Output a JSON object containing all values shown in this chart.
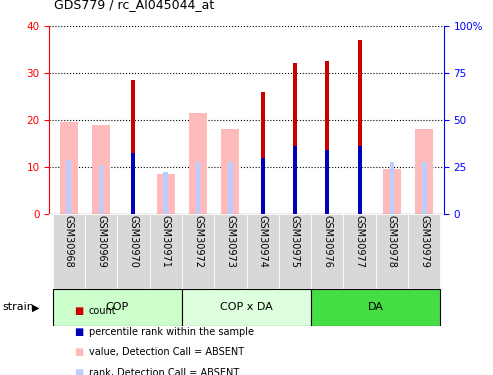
{
  "title": "GDS779 / rc_AI045044_at",
  "samples": [
    "GSM30968",
    "GSM30969",
    "GSM30970",
    "GSM30971",
    "GSM30972",
    "GSM30973",
    "GSM30974",
    "GSM30975",
    "GSM30976",
    "GSM30977",
    "GSM30978",
    "GSM30979"
  ],
  "count_values": [
    0,
    0,
    28.5,
    0,
    0,
    0,
    26.0,
    32.2,
    32.5,
    37.0,
    0,
    0
  ],
  "rank_values": [
    0,
    0,
    13.0,
    0,
    0,
    0,
    12.0,
    14.5,
    13.5,
    14.5,
    0,
    0
  ],
  "absent_value_values": [
    19.5,
    19.0,
    0,
    8.5,
    21.5,
    18.0,
    0,
    0,
    0,
    0,
    9.5,
    18.0
  ],
  "absent_rank_values": [
    11.5,
    10.5,
    0,
    9.0,
    11.0,
    11.0,
    0,
    0,
    0,
    0,
    11.0,
    11.0
  ],
  "count_color": "#cc0000",
  "rank_color": "#0000bb",
  "absent_value_color": "#ffbbbb",
  "absent_rank_color": "#bbccff",
  "ylim_left": [
    0,
    40
  ],
  "ylim_right": [
    0,
    100
  ],
  "yticks_left": [
    0,
    10,
    20,
    30,
    40
  ],
  "yticks_right": [
    0,
    25,
    50,
    75,
    100
  ],
  "ytick_labels_right": [
    "0",
    "25",
    "50",
    "75",
    "100%"
  ],
  "group_colors": [
    "#ccffcc",
    "#ddffdd",
    "#44dd44"
  ],
  "group_labels": [
    "COP",
    "COP x DA",
    "DA"
  ],
  "group_ranges": [
    [
      0,
      3
    ],
    [
      4,
      7
    ],
    [
      8,
      11
    ]
  ],
  "strain_label": "strain",
  "legend_items": [
    {
      "label": "count",
      "color": "#cc0000"
    },
    {
      "label": "percentile rank within the sample",
      "color": "#0000bb"
    },
    {
      "label": "value, Detection Call = ABSENT",
      "color": "#ffbbbb"
    },
    {
      "label": "rank, Detection Call = ABSENT",
      "color": "#bbccff"
    }
  ],
  "plot_bg_color": "#ffffff",
  "xtick_bg_color": "#d8d8d8",
  "wide_bar_width": 0.55,
  "narrow_bar_width": 0.12
}
